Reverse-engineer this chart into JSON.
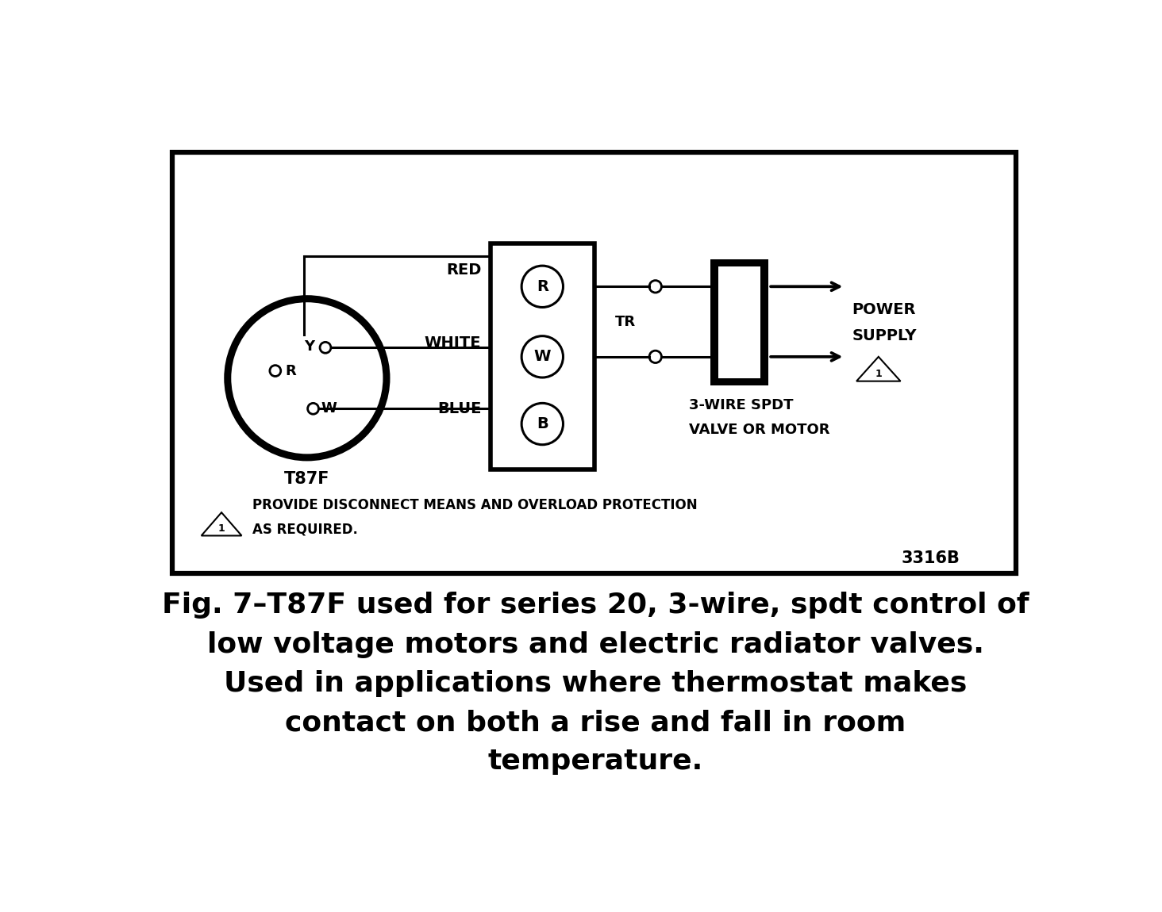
{
  "bg_color": "#ffffff",
  "line_color": "#000000",
  "caption_line1": "Fig. 7–T87F used for series 20, 3-wire, spdt control of",
  "caption_line2": "low voltage motors and electric radiator valves.",
  "caption_line3": "Used in applications where thermostat makes",
  "caption_line4": "contact on both a rise and fall in room",
  "caption_line5": "temperature.",
  "caption_fontsize": 26,
  "ref_number": "3316B",
  "warning_text1": "PROVIDE DISCONNECT MEANS AND OVERLOAD PROTECTION",
  "warning_text2": "AS REQUIRED.",
  "thermostat_label": "T87F",
  "valve_label1": "3-WIRE SPDT",
  "valve_label2": "VALVE OR MOTOR",
  "tr_label": "TR",
  "power_label1": "POWER",
  "power_label2": "SUPPLY",
  "terminal_R": "R",
  "terminal_W": "W",
  "terminal_B": "B",
  "wire_R": "RED",
  "wire_W": "WHITE",
  "wire_B": "BLUE",
  "circle_Y": "Y",
  "circle_R": "R",
  "circle_W": "W"
}
